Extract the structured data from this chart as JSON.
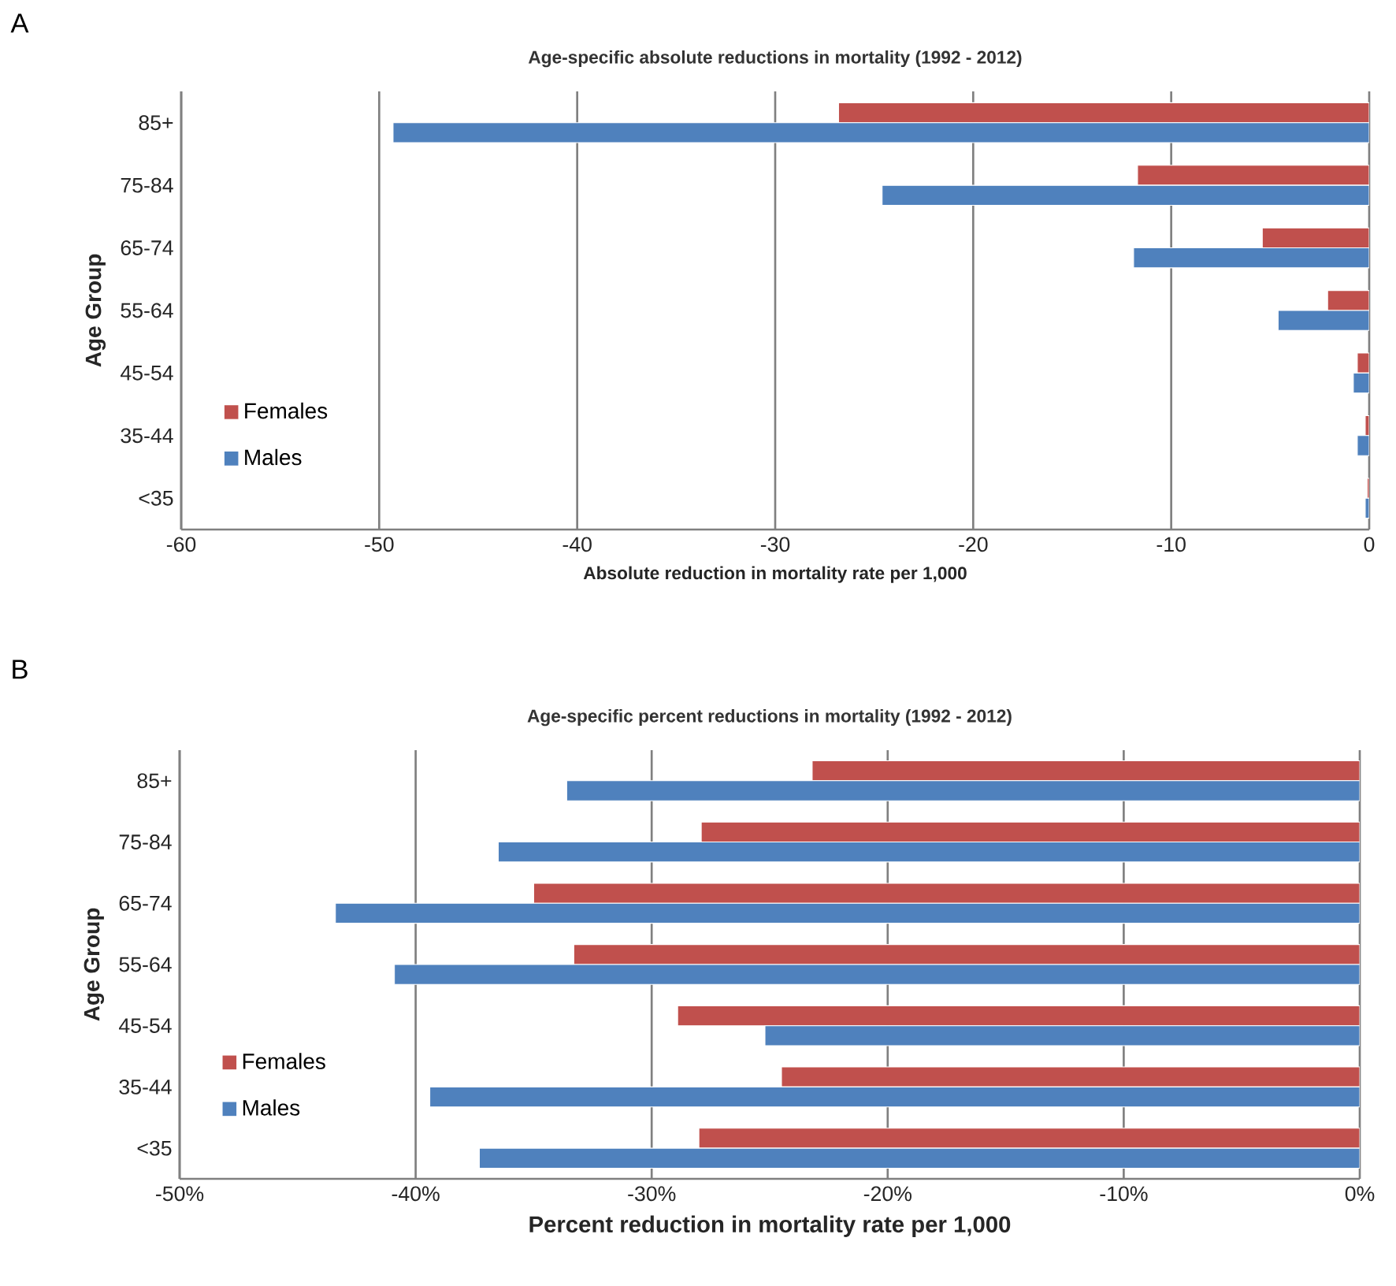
{
  "chart_data": [
    {
      "type": "bar",
      "orientation": "horizontal",
      "title": "Age-specific absolute reductions in mortality (1992 - 2012)",
      "xlabel": "Absolute reduction in mortality rate per 1,000",
      "ylabel": "Age Group",
      "annotations": [
        "A"
      ],
      "categories": [
        "85+",
        "75-84",
        "65-74",
        "55-64",
        "45-54",
        "35-44",
        "<35"
      ],
      "series": [
        {
          "name": "Females",
          "color": "#c0504d",
          "values": [
            -26.8,
            -11.7,
            -5.4,
            -2.1,
            -0.6,
            -0.2,
            -0.1
          ]
        },
        {
          "name": "Males",
          "color": "#4f81bd",
          "values": [
            -49.3,
            -24.6,
            -11.9,
            -4.6,
            -0.8,
            -0.6,
            -0.2
          ]
        }
      ],
      "xlim": [
        -60,
        0
      ],
      "xticks": [
        -60,
        -50,
        -40,
        -30,
        -20,
        -10,
        0
      ],
      "grid": "x",
      "legend": "bottom left"
    },
    {
      "type": "bar",
      "orientation": "horizontal",
      "title": "Age-specific percent reductions in mortality (1992 - 2012)",
      "xlabel": "Percent reduction in mortality rate per 1,000",
      "ylabel": "Age Group",
      "annotations": [
        "B"
      ],
      "categories": [
        "85+",
        "75-84",
        "65-74",
        "55-64",
        "45-54",
        "35-44",
        "<35"
      ],
      "series": [
        {
          "name": "Females",
          "color": "#c0504d",
          "values": [
            -23.2,
            -27.9,
            -35.0,
            -33.3,
            -28.9,
            -24.5,
            -28.0
          ]
        },
        {
          "name": "Males",
          "color": "#4f81bd",
          "values": [
            -33.6,
            -36.5,
            -43.4,
            -40.9,
            -25.2,
            -39.4,
            -37.3
          ]
        }
      ],
      "xlim": [
        -50,
        0
      ],
      "xticks": [
        {
          "value": -50,
          "label": "-50%"
        },
        {
          "value": -40,
          "label": "-40%"
        },
        {
          "value": -30,
          "label": "-30%"
        },
        {
          "value": -20,
          "label": "-20%"
        },
        {
          "value": -10,
          "label": "-10%"
        },
        {
          "value": 0,
          "label": "0%"
        }
      ],
      "grid": "x",
      "legend": "bottom left"
    }
  ]
}
